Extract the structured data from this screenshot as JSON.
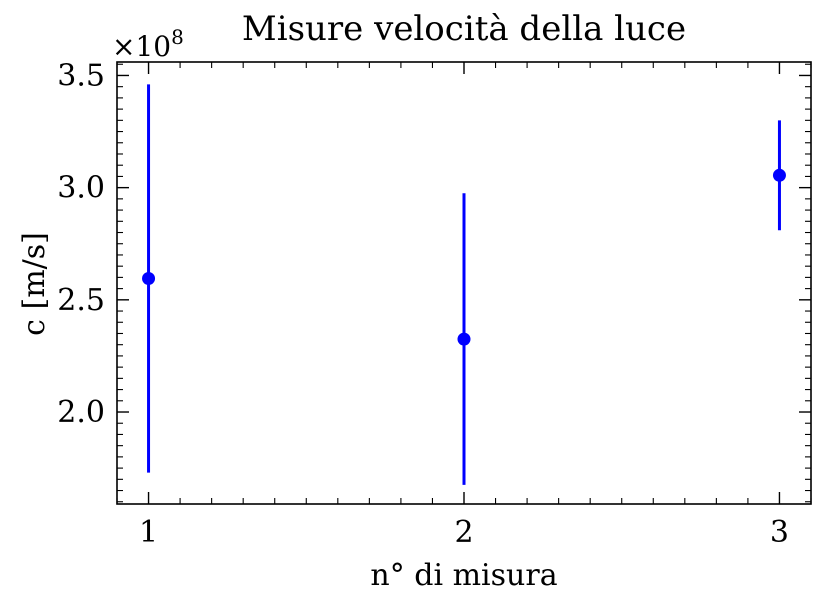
{
  "chart_data": {
    "type": "scatter",
    "title": "Misure velocità della luce",
    "xlabel": "n° di misura",
    "ylabel": "c [m/s]",
    "offset_label": "×10",
    "offset_exponent": "8",
    "xlim": [
      0.9,
      3.1
    ],
    "ylim": [
      1.59,
      3.56
    ],
    "x_ticks": [
      1,
      2,
      3
    ],
    "x_tick_labels": [
      "1",
      "2",
      "3"
    ],
    "y_ticks": [
      2.0,
      2.5,
      3.0,
      3.5
    ],
    "y_tick_labels": [
      "2.0",
      "2.5",
      "3.0",
      "3.5"
    ],
    "y_scale_factor": 100000000,
    "grid": false,
    "series": [
      {
        "color": "#0000ff",
        "marker": "circle",
        "x": [
          1,
          2,
          3
        ],
        "y": [
          2.595,
          2.325,
          3.055
        ],
        "y_err": [
          0.865,
          0.65,
          0.245
        ]
      }
    ]
  }
}
